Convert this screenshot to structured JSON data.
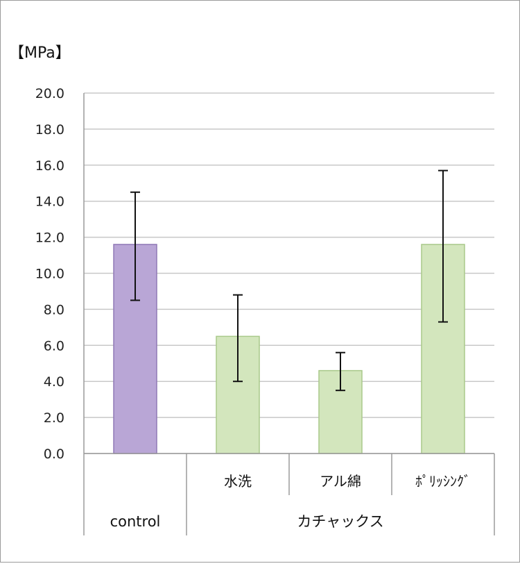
{
  "chart_data": {
    "type": "bar",
    "y_unit_label": "【MPa】",
    "ylim": [
      0,
      20
    ],
    "yticks": [
      "0.0",
      "2.0",
      "4.0",
      "6.0",
      "8.0",
      "10.0",
      "12.0",
      "14.0",
      "16.0",
      "18.0",
      "20.0"
    ],
    "grid": true,
    "categories": [
      "",
      "水洗",
      "アル綿",
      "ﾎﾟﾘｯｼﾝｸﾞ"
    ],
    "groups": [
      {
        "label": "control",
        "span": [
          0,
          0
        ]
      },
      {
        "label": "カチャックス",
        "span": [
          1,
          3
        ]
      }
    ],
    "values": [
      11.6,
      6.5,
      4.6,
      11.6
    ],
    "errors": [
      {
        "low": 8.5,
        "high": 14.5
      },
      {
        "low": 4.0,
        "high": 8.8
      },
      {
        "low": 3.5,
        "high": 5.6
      },
      {
        "low": 7.3,
        "high": 15.7
      }
    ],
    "bar_colors": [
      "#b9a6d6",
      "#d3e6bd",
      "#d3e6bd",
      "#d3e6bd"
    ],
    "bar_edge_colors": [
      "#8f78b6",
      "#a9c98a",
      "#a9c98a",
      "#a9c98a"
    ]
  }
}
